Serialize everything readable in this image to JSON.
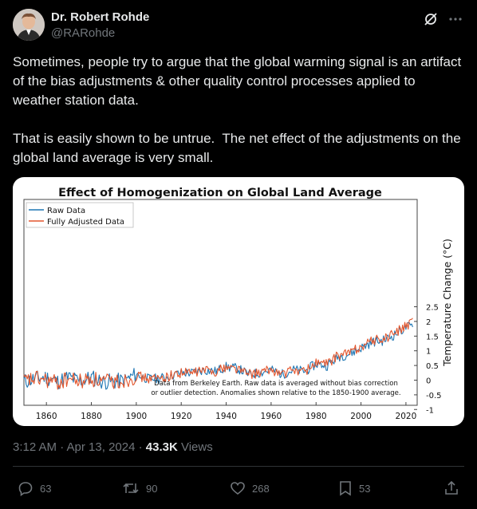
{
  "author": {
    "name": "Dr. Robert Rohde",
    "handle": "@RARohde"
  },
  "tweet": {
    "text": "Sometimes, people try to argue that the global warming signal is an artifact of the bias adjustments & other quality control processes applied to weather station data.\n\nThat is easily shown to be untrue.  The net effect of the adjustments on the global land average is very small."
  },
  "meta": {
    "time": "3:12 AM · Apr 13, 2024 · ",
    "views_count": "43.3K",
    "views_label": " Views"
  },
  "actions": {
    "replies": "63",
    "reposts": "90",
    "likes": "268",
    "bookmarks": "53"
  },
  "icons": [
    "avatar",
    "grok-icon",
    "more-icon",
    "reply-icon",
    "repost-icon",
    "like-icon",
    "bookmark-icon",
    "share-icon"
  ],
  "colors": {
    "raw": "#1f77b4",
    "adjusted": "#e4572e",
    "background": "#000000",
    "text": "#e7e9ea",
    "muted": "#71767b"
  },
  "chart_data": {
    "type": "line",
    "title": "Effect of Homogenization on Global Land Average",
    "ylabel": "Temperature Change (°C)",
    "xlabel": "",
    "xlim": [
      1850,
      2025
    ],
    "ylim": [
      -1,
      2.5
    ],
    "x_ticks": [
      1860,
      1880,
      1900,
      1920,
      1940,
      1960,
      1980,
      2000,
      2020
    ],
    "y_ticks": [
      -1,
      -0.5,
      0,
      0.5,
      1,
      1.5,
      2,
      2.5
    ],
    "y_tick_labels": [
      "-1",
      "-0.5",
      "0",
      "0.5",
      "1",
      "1.5",
      "2",
      "2.5"
    ],
    "legend": "top-left",
    "annotation_lines": [
      "Data from Berkeley Earth.  Raw data is averaged without bias correction",
      "or outlier detection.  Anomalies shown relative to the 1850-1900 average."
    ],
    "series_x": [
      1850,
      1855,
      1860,
      1865,
      1870,
      1875,
      1880,
      1885,
      1890,
      1895,
      1900,
      1905,
      1910,
      1915,
      1920,
      1925,
      1930,
      1935,
      1940,
      1945,
      1950,
      1955,
      1960,
      1965,
      1970,
      1975,
      1980,
      1985,
      1990,
      1995,
      2000,
      2005,
      2010,
      2015,
      2020,
      2023
    ],
    "series": [
      {
        "name": "Raw Data",
        "values": [
          -0.05,
          0.05,
          0.1,
          -0.05,
          0.1,
          -0.05,
          0.1,
          -0.05,
          -0.05,
          0.0,
          0.2,
          0.05,
          0.05,
          0.15,
          0.25,
          0.25,
          0.35,
          0.3,
          0.45,
          0.4,
          0.2,
          0.25,
          0.35,
          0.2,
          0.35,
          0.3,
          0.55,
          0.5,
          0.8,
          0.9,
          1.1,
          1.3,
          1.35,
          1.55,
          1.8,
          1.85
        ]
      },
      {
        "name": "Fully Adjusted Data",
        "values": [
          -0.05,
          0.05,
          0.0,
          -0.1,
          0.05,
          -0.05,
          0.05,
          -0.05,
          -0.05,
          0.0,
          0.15,
          0.05,
          0.05,
          0.15,
          0.25,
          0.25,
          0.35,
          0.3,
          0.45,
          0.4,
          0.2,
          0.25,
          0.35,
          0.2,
          0.35,
          0.3,
          0.6,
          0.55,
          0.85,
          0.95,
          1.15,
          1.35,
          1.4,
          1.6,
          1.85,
          1.95
        ]
      }
    ]
  }
}
